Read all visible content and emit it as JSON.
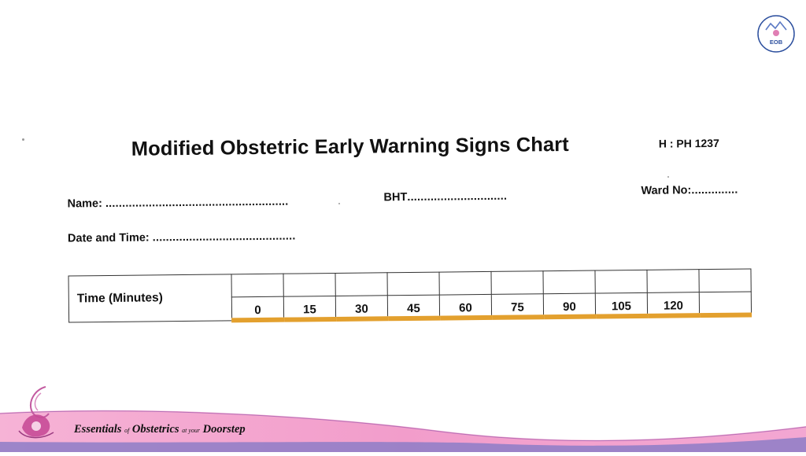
{
  "brand": {
    "logo_text": "EOB",
    "footer_tagline_parts": [
      "Essentials",
      "of",
      "Obstetrics",
      "at your",
      "Doorstep"
    ]
  },
  "form": {
    "title": "Modified Obstetric Early Warning Signs Chart",
    "hospital_id": "H : PH 1237",
    "name_label": "Name:",
    "name_dots": ".......................................................",
    "bht_label": "BHT",
    "bht_dots": "..............................",
    "ward_label": "Ward No:",
    "ward_dots": "..............",
    "date_label": "Date and Time:",
    "date_dots": "...........................................",
    "time_row_label": "Time (Minutes)",
    "time_values": [
      "0",
      "15",
      "30",
      "45",
      "60",
      "75",
      "90",
      "105",
      "120",
      ""
    ]
  },
  "colors": {
    "highlight": "#e3a02e",
    "footer_pink": "#f09ac8",
    "footer_purple": "#7d5fb8",
    "logo_blue": "#2c4f9e"
  }
}
